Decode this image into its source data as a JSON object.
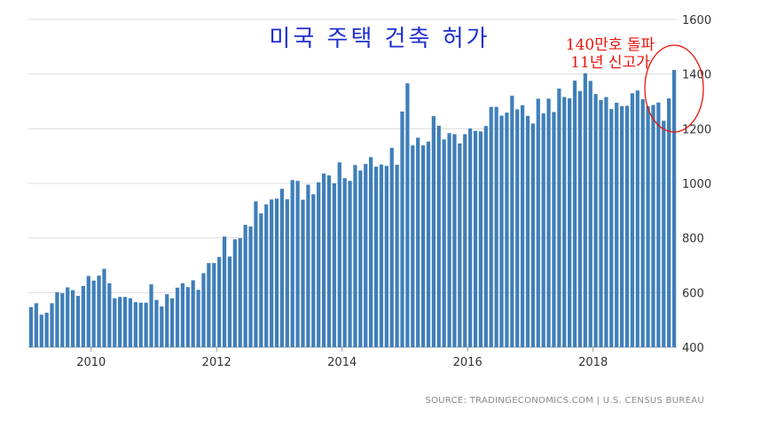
{
  "chart_data": {
    "type": "bar",
    "title": "미국 주택 건축 허가",
    "annotation": {
      "line1": "140만호 돌파",
      "line2": "11년 신고가"
    },
    "source": "SOURCE: TRADINGECONOMICS.COM | U.S. CENSUS BUREAU",
    "xlabel": "",
    "ylabel": "",
    "ylim": [
      400,
      1600
    ],
    "yticks": [
      400,
      600,
      800,
      1000,
      1200,
      1400,
      1600
    ],
    "y_axis_position": "right",
    "grid": "horizontal",
    "bar_color": "#3f7fba",
    "annotation_color": "#e8140c",
    "title_color": "#1f2fd0",
    "x_start": "2009-01",
    "x_end": "2019-06",
    "xtick_labels": [
      "2010",
      "2012",
      "2014",
      "2016",
      "2018"
    ],
    "series": [
      {
        "values": [
          547,
          561,
          519,
          526,
          561,
          601,
          598,
          619,
          609,
          588,
          624,
          661,
          644,
          662,
          687,
          634,
          579,
          584,
          584,
          579,
          565,
          563,
          563,
          630,
          573,
          549,
          594,
          579,
          618,
          634,
          620,
          645,
          610,
          671,
          708,
          708,
          730,
          805,
          732,
          795,
          799,
          848,
          842,
          934,
          890,
          923,
          941,
          944,
          980,
          942,
          1012,
          1009,
          940,
          995,
          960,
          1004,
          1036,
          1029,
          1000,
          1077,
          1019,
          1009,
          1067,
          1047,
          1071,
          1096,
          1061,
          1069,
          1064,
          1130,
          1068,
          1263,
          1366,
          1139,
          1167,
          1139,
          1153,
          1246,
          1211,
          1161,
          1184,
          1180,
          1146,
          1180,
          1201,
          1192,
          1190,
          1210,
          1280,
          1280,
          1248,
          1259,
          1321,
          1271,
          1286,
          1247,
          1219,
          1310,
          1256,
          1310,
          1261,
          1347,
          1316,
          1311,
          1376,
          1338,
          1403,
          1375,
          1327,
          1305,
          1316,
          1272,
          1295,
          1283,
          1284,
          1330,
          1340,
          1308,
          1282,
          1287,
          1296,
          1229,
          1311,
          1415
        ]
      }
    ]
  }
}
